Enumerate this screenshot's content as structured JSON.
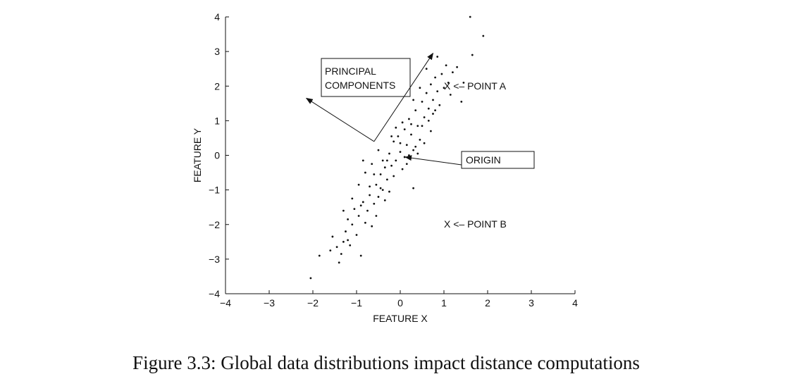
{
  "caption": "Figure 3.3: Global data distributions impact distance computations",
  "chart_data": {
    "type": "scatter",
    "xlabel": "FEATURE X",
    "ylabel": "FEATURE Y",
    "xlim": [
      -4,
      4
    ],
    "ylim": [
      -4,
      4
    ],
    "x_ticks": [
      -4,
      -3,
      -2,
      -1,
      0,
      1,
      2,
      3,
      4
    ],
    "y_ticks": [
      -4,
      -3,
      -2,
      -1,
      0,
      1,
      2,
      3,
      4
    ],
    "x_tick_labels": [
      "−4",
      "−3",
      "−2",
      "−1",
      "0",
      "1",
      "2",
      "3",
      "4"
    ],
    "y_tick_labels": [
      "−4",
      "−3",
      "−2",
      "−1",
      "0",
      "1",
      "2",
      "3",
      "4"
    ],
    "grid": false,
    "series": [
      {
        "points": [
          [
            -2.05,
            -3.55
          ],
          [
            -1.85,
            -2.9
          ],
          [
            -1.6,
            -2.75
          ],
          [
            -1.55,
            -2.35
          ],
          [
            -1.45,
            -2.65
          ],
          [
            -1.4,
            -3.1
          ],
          [
            -1.35,
            -2.85
          ],
          [
            -1.3,
            -2.5
          ],
          [
            -1.25,
            -2.2
          ],
          [
            -1.2,
            -1.85
          ],
          [
            -1.15,
            -2.6
          ],
          [
            -1.1,
            -2.0
          ],
          [
            -1.05,
            -1.55
          ],
          [
            -1.0,
            -2.3
          ],
          [
            -0.95,
            -1.75
          ],
          [
            -0.9,
            -2.9
          ],
          [
            -0.85,
            -1.35
          ],
          [
            -0.8,
            -1.95
          ],
          [
            -0.75,
            -1.6
          ],
          [
            -0.7,
            -1.15
          ],
          [
            -0.65,
            -2.05
          ],
          [
            -0.6,
            -1.4
          ],
          [
            -0.55,
            -0.85
          ],
          [
            -0.5,
            -1.2
          ],
          [
            -0.45,
            -0.55
          ],
          [
            -0.4,
            -1.0
          ],
          [
            -0.35,
            -0.35
          ],
          [
            -0.3,
            -0.7
          ],
          [
            -0.25,
            0.05
          ],
          [
            -0.2,
            -0.3
          ],
          [
            -0.15,
            0.4
          ],
          [
            -0.1,
            -0.15
          ],
          [
            -0.05,
            0.55
          ],
          [
            0.0,
            0.1
          ],
          [
            0.05,
            -0.4
          ],
          [
            0.1,
            0.75
          ],
          [
            0.15,
            0.3
          ],
          [
            0.2,
            1.05
          ],
          [
            0.25,
            0.6
          ],
          [
            0.3,
            0.15
          ],
          [
            0.35,
            1.3
          ],
          [
            0.4,
            0.85
          ],
          [
            0.45,
            0.45
          ],
          [
            0.5,
            1.55
          ],
          [
            0.55,
            1.1
          ],
          [
            0.6,
            1.8
          ],
          [
            0.65,
            1.35
          ],
          [
            0.7,
            2.05
          ],
          [
            0.75,
            1.6
          ],
          [
            0.8,
            2.25
          ],
          [
            0.85,
            1.85
          ],
          [
            0.9,
            1.45
          ],
          [
            0.95,
            2.35
          ],
          [
            1.0,
            1.95
          ],
          [
            1.05,
            2.6
          ],
          [
            1.1,
            2.1
          ],
          [
            1.2,
            2.4
          ],
          [
            1.3,
            2.55
          ],
          [
            1.4,
            1.55
          ],
          [
            1.45,
            2.1
          ],
          [
            1.6,
            4.0
          ],
          [
            1.65,
            2.9
          ],
          [
            1.9,
            3.45
          ],
          [
            -0.9,
            -1.45
          ],
          [
            -0.7,
            -0.9
          ],
          [
            -0.6,
            -0.55
          ],
          [
            -0.45,
            -0.95
          ],
          [
            -0.3,
            -0.15
          ],
          [
            -0.15,
            -0.6
          ],
          [
            0.0,
            0.35
          ],
          [
            0.1,
            -0.05
          ],
          [
            0.25,
            0.9
          ],
          [
            0.35,
            0.25
          ],
          [
            0.5,
            0.85
          ],
          [
            0.65,
            1.0
          ],
          [
            0.8,
            1.3
          ],
          [
            -1.1,
            -1.25
          ],
          [
            -0.95,
            -0.85
          ],
          [
            -0.8,
            -0.5
          ],
          [
            -0.55,
            -1.75
          ],
          [
            -0.35,
            -1.3
          ],
          [
            -0.2,
            0.55
          ],
          [
            0.05,
            0.95
          ],
          [
            0.3,
            1.6
          ],
          [
            0.45,
            1.95
          ],
          [
            0.6,
            2.5
          ],
          [
            0.75,
            1.2
          ],
          [
            -1.3,
            -1.6
          ],
          [
            -1.2,
            -2.45
          ],
          [
            -0.65,
            -0.25
          ],
          [
            -0.5,
            0.15
          ],
          [
            0.15,
            -0.25
          ],
          [
            0.4,
            0.05
          ],
          [
            0.55,
            0.35
          ],
          [
            0.3,
            -0.95
          ],
          [
            0.85,
            2.85
          ],
          [
            1.15,
            1.75
          ],
          [
            0.7,
            0.7
          ],
          [
            -0.85,
            -0.15
          ],
          [
            -0.25,
            -1.05
          ],
          [
            0.2,
            0.0
          ],
          [
            -0.1,
            0.8
          ],
          [
            -0.4,
            -0.15
          ]
        ]
      }
    ],
    "annotations": [
      {
        "text": "PRINCIPAL",
        "group": "principal-components"
      },
      {
        "text": "COMPONENTS",
        "group": "principal-components"
      },
      {
        "text": "X <– POINT A",
        "at": [
          1.0,
          2.0
        ]
      },
      {
        "text": "ORIGIN",
        "target": [
          0.05,
          -0.05
        ]
      },
      {
        "text": "X <– POINT B",
        "at": [
          1.0,
          -2.0
        ]
      }
    ],
    "pc_vectors": [
      {
        "from": [
          -0.6,
          0.4
        ],
        "to": [
          0.75,
          2.95
        ]
      },
      {
        "from": [
          -0.6,
          0.4
        ],
        "to": [
          -2.15,
          1.65
        ]
      }
    ]
  }
}
